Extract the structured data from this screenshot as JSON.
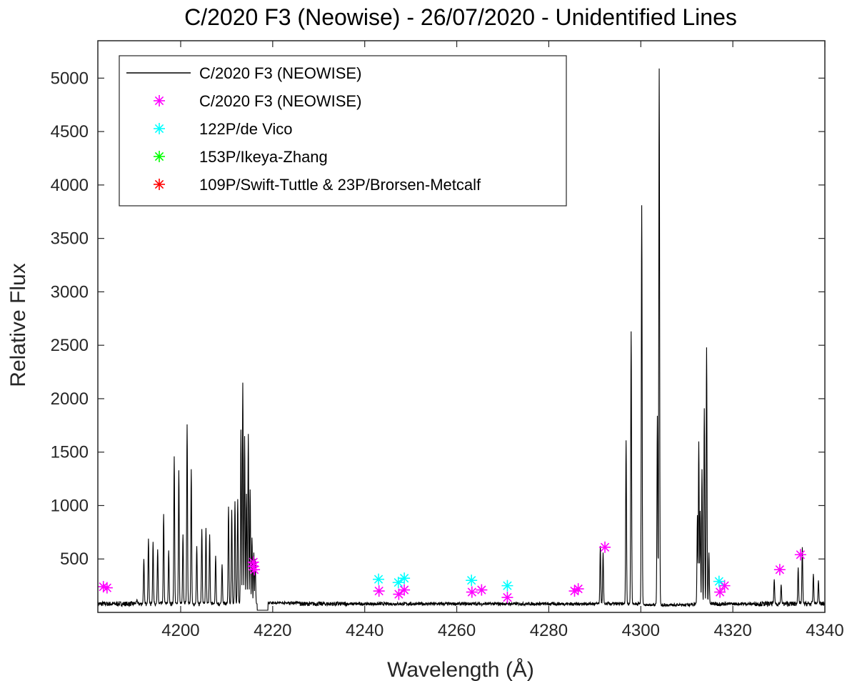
{
  "chart_data": {
    "type": "line",
    "title": "C/2020 F3 (Neowise) - 26/07/2020 - Unidentified Lines",
    "xlabel": "Wavelength (Å)",
    "ylabel": "Relative Flux",
    "xlim": [
      4182,
      4340
    ],
    "ylim": [
      0,
      5350
    ],
    "xticks": [
      4200,
      4220,
      4240,
      4260,
      4280,
      4300,
      4320,
      4340
    ],
    "yticks": [
      500,
      1000,
      1500,
      2000,
      2500,
      3000,
      3500,
      4000,
      4500,
      5000
    ],
    "grid": false,
    "legend_position": "top-left",
    "baseline": 80,
    "spectrum_peaks": [
      {
        "x": 4190.5,
        "y": 120
      },
      {
        "x": 4192,
        "y": 500
      },
      {
        "x": 4193,
        "y": 690
      },
      {
        "x": 4194,
        "y": 660
      },
      {
        "x": 4195,
        "y": 590
      },
      {
        "x": 4196.3,
        "y": 920
      },
      {
        "x": 4197.4,
        "y": 580
      },
      {
        "x": 4198.6,
        "y": 1460
      },
      {
        "x": 4199.6,
        "y": 1330
      },
      {
        "x": 4200.5,
        "y": 730
      },
      {
        "x": 4201.4,
        "y": 1760
      },
      {
        "x": 4202.3,
        "y": 1340
      },
      {
        "x": 4203.5,
        "y": 620
      },
      {
        "x": 4204.6,
        "y": 780
      },
      {
        "x": 4205.5,
        "y": 790
      },
      {
        "x": 4206.3,
        "y": 730
      },
      {
        "x": 4207.6,
        "y": 530
      },
      {
        "x": 4209,
        "y": 450
      },
      {
        "x": 4210.4,
        "y": 990
      },
      {
        "x": 4211.1,
        "y": 960
      },
      {
        "x": 4211.8,
        "y": 1040
      },
      {
        "x": 4212.4,
        "y": 1060
      },
      {
        "x": 4213.1,
        "y": 1710
      },
      {
        "x": 4213.5,
        "y": 2150
      },
      {
        "x": 4213.9,
        "y": 1650
      },
      {
        "x": 4214.3,
        "y": 1110
      },
      {
        "x": 4214.7,
        "y": 1670
      },
      {
        "x": 4215.1,
        "y": 1150
      },
      {
        "x": 4215.5,
        "y": 700
      },
      {
        "x": 4215.9,
        "y": 560
      },
      {
        "x": 4216.2,
        "y": 500
      },
      {
        "x": 4291.2,
        "y": 620
      },
      {
        "x": 4291.8,
        "y": 560
      },
      {
        "x": 4296.8,
        "y": 1610
      },
      {
        "x": 4297.9,
        "y": 2630
      },
      {
        "x": 4300.2,
        "y": 3810
      },
      {
        "x": 4303.6,
        "y": 1840
      },
      {
        "x": 4304.0,
        "y": 5090
      },
      {
        "x": 4312.3,
        "y": 910
      },
      {
        "x": 4312.6,
        "y": 1600
      },
      {
        "x": 4312.9,
        "y": 950
      },
      {
        "x": 4313.3,
        "y": 1340
      },
      {
        "x": 4313.8,
        "y": 1910
      },
      {
        "x": 4314.3,
        "y": 2480
      },
      {
        "x": 4314.8,
        "y": 560
      },
      {
        "x": 4329.0,
        "y": 310
      },
      {
        "x": 4330.5,
        "y": 260
      },
      {
        "x": 4334.2,
        "y": 420
      },
      {
        "x": 4335.1,
        "y": 610
      },
      {
        "x": 4337.5,
        "y": 360
      },
      {
        "x": 4338.6,
        "y": 300
      }
    ],
    "series": [
      {
        "name": "C/2020 F3 (NEOWISE)",
        "marker": "line",
        "color": "#000000"
      },
      {
        "name": "C/2020 F3 (NEOWISE)",
        "marker": "asterisk",
        "color": "#ff00ff",
        "points": [
          {
            "x": 4183.2,
            "y": 240
          },
          {
            "x": 4184.0,
            "y": 230
          },
          {
            "x": 4215.8,
            "y": 470
          },
          {
            "x": 4215.8,
            "y": 430
          },
          {
            "x": 4216.0,
            "y": 400
          },
          {
            "x": 4243.1,
            "y": 200
          },
          {
            "x": 4247.4,
            "y": 170
          },
          {
            "x": 4248.6,
            "y": 210
          },
          {
            "x": 4263.3,
            "y": 190
          },
          {
            "x": 4265.4,
            "y": 210
          },
          {
            "x": 4271.0,
            "y": 140
          },
          {
            "x": 4285.6,
            "y": 200
          },
          {
            "x": 4286.4,
            "y": 220
          },
          {
            "x": 4292.2,
            "y": 610
          },
          {
            "x": 4317.2,
            "y": 190
          },
          {
            "x": 4318.2,
            "y": 250
          },
          {
            "x": 4330.2,
            "y": 400
          },
          {
            "x": 4334.7,
            "y": 540
          }
        ]
      },
      {
        "name": "122P/de Vico",
        "marker": "asterisk",
        "color": "#00ffff",
        "points": [
          {
            "x": 4243.0,
            "y": 310
          },
          {
            "x": 4247.3,
            "y": 280
          },
          {
            "x": 4248.6,
            "y": 320
          },
          {
            "x": 4263.2,
            "y": 300
          },
          {
            "x": 4271.0,
            "y": 250
          },
          {
            "x": 4317.0,
            "y": 290
          }
        ]
      },
      {
        "name": "153P/Ikeya-Zhang",
        "marker": "asterisk",
        "color": "#00ff00",
        "points": []
      },
      {
        "name": "109P/Swift-Tuttle & 23P/Brorsen-Metcalf",
        "marker": "asterisk",
        "color": "#ff0000",
        "points": []
      }
    ]
  }
}
